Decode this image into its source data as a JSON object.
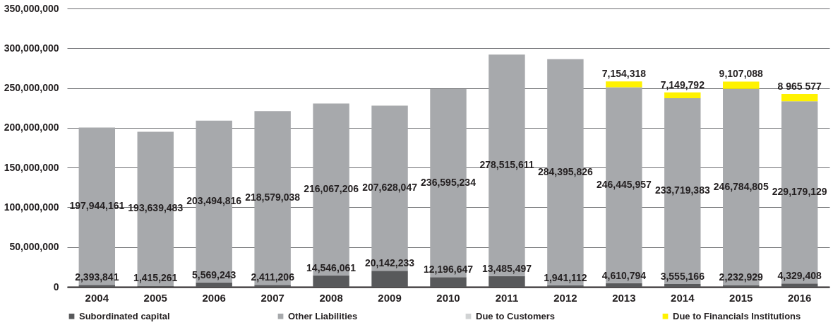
{
  "chart_data": {
    "type": "bar",
    "stacked": true,
    "categories": [
      "2004",
      "2005",
      "2006",
      "2007",
      "2008",
      "2009",
      "2010",
      "2011",
      "2012",
      "2013",
      "2014",
      "2015",
      "2016"
    ],
    "series": [
      {
        "name": "Subordinated capital",
        "color": "#58595b",
        "values": [
          2393841,
          1415261,
          5569243,
          2411206,
          14546061,
          20142233,
          12196647,
          13485497,
          1941112,
          4610794,
          3555166,
          2232929,
          4329408
        ],
        "value_labels": [
          "2,393,841",
          "1,415,261",
          "5,569,243",
          "2,411,206",
          "14,546,061",
          "20,142,233",
          "12,196,647",
          "13,485,497",
          "1,941,112",
          "4,610,794",
          "3,555,166",
          "2,232,929",
          "4,329,408"
        ]
      },
      {
        "name": "Other Liabilities",
        "color": "#a7a9ac",
        "values": [
          197944161,
          193639483,
          203494816,
          218579038,
          216067206,
          207628047,
          236595234,
          278515611,
          284395826,
          246445957,
          233719383,
          246784805,
          229179129
        ],
        "value_labels": [
          "197,944,161",
          "193,639,483",
          "203,494,816",
          "218,579,038",
          "216,067,206",
          "207,628,047",
          "236,595,234",
          "278,515,611",
          "284,395,826",
          "246,445,957",
          "233,719,383",
          "246,784,805",
          "229,179,129"
        ]
      },
      {
        "name": "Due to Customers",
        "color": "#d1d3d4",
        "values": [
          null,
          null,
          null,
          null,
          null,
          null,
          null,
          null,
          null,
          null,
          null,
          null,
          null
        ]
      },
      {
        "name": "Due to Financials Institutions",
        "color": "#fff200",
        "values": [
          null,
          null,
          null,
          null,
          null,
          null,
          null,
          null,
          null,
          7154318,
          7149792,
          9107088,
          8965577
        ],
        "value_labels": [
          null,
          null,
          null,
          null,
          null,
          null,
          null,
          null,
          null,
          "7,154,318",
          "7,149,792",
          "9,107,088",
          "8 965 577"
        ]
      }
    ],
    "ylim": [
      0,
      350000000
    ],
    "yticks": [
      0,
      {
        "value": 50000000,
        "label": "50,000,000"
      },
      {
        "value": 100000000,
        "label": "100,000,000"
      },
      {
        "value": 150000000,
        "label": "150,000,000"
      },
      {
        "value": 200000000,
        "label": "200,000,000"
      },
      {
        "value": 250000000,
        "label": "250,000,000"
      },
      {
        "value": 300000000,
        "label": "300,000,000"
      },
      {
        "value": 350000000,
        "label": "350,000,000"
      }
    ],
    "grid": "y",
    "legend": "bottom"
  }
}
